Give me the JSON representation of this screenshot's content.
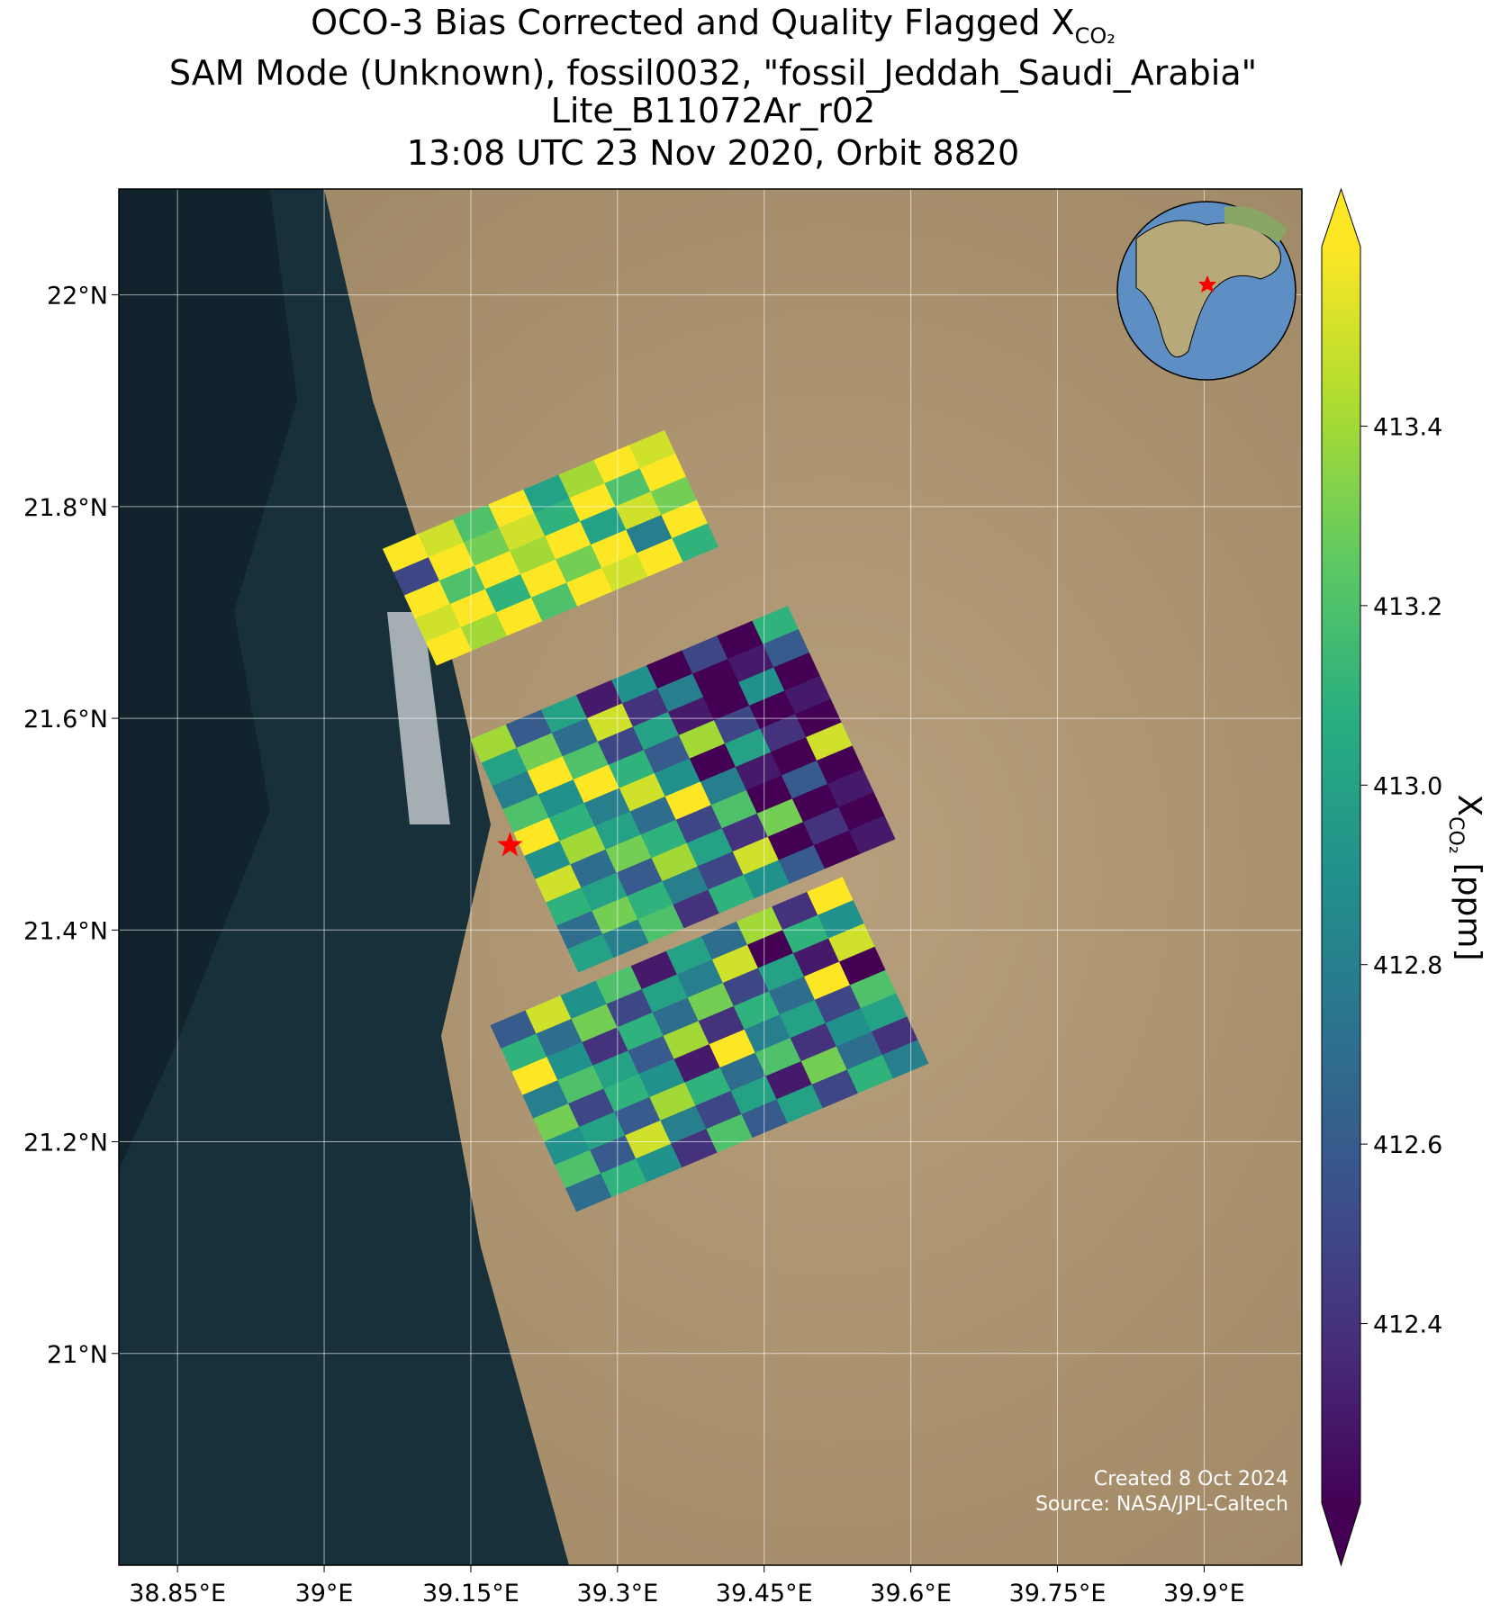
{
  "chart_data": {
    "type": "map",
    "title": [
      "OCO-3 Bias Corrected and Quality Flagged X",
      "SAM Mode (Unknown), fossil0032, \"fossil_Jeddah_Saudi_Arabia\"",
      "Lite_B11072Ar_r02",
      "13:08 UTC 23 Nov 2020, Orbit 8820"
    ],
    "title_subscript": "CO₂",
    "xlim": [
      38.79,
      40.0
    ],
    "ylim": [
      20.8,
      22.1
    ],
    "xticks": [
      {
        "value": 38.85,
        "label": "38.85°E"
      },
      {
        "value": 39.0,
        "label": "39°E"
      },
      {
        "value": 39.15,
        "label": "39.15°E"
      },
      {
        "value": 39.3,
        "label": "39.3°E"
      },
      {
        "value": 39.45,
        "label": "39.45°E"
      },
      {
        "value": 39.6,
        "label": "39.6°E"
      },
      {
        "value": 39.75,
        "label": "39.75°E"
      },
      {
        "value": 39.9,
        "label": "39.9°E"
      }
    ],
    "yticks": [
      {
        "value": 21.0,
        "label": "21°N"
      },
      {
        "value": 21.2,
        "label": "21.2°N"
      },
      {
        "value": 21.4,
        "label": "21.4°N"
      },
      {
        "value": 21.6,
        "label": "21.6°N"
      },
      {
        "value": 21.8,
        "label": "21.8°N"
      },
      {
        "value": 22.0,
        "label": "22°N"
      }
    ],
    "grid": true,
    "colormap": "viridis",
    "clim": [
      412.2,
      413.6
    ],
    "cticks": [
      412.4,
      412.6,
      412.8,
      {
        "value": 413.0,
        "label": "413.0"
      },
      413.2,
      413.4
    ],
    "colorbar_label": [
      "X",
      "CO₂",
      "[ppm]"
    ],
    "target": {
      "lon": 39.19,
      "lat": 21.48,
      "color": "#ff0000"
    },
    "swaths": [
      {
        "lon": 39.06,
        "lat": 21.76,
        "values": [
          [
            413.6,
            413.5,
            413.2,
            413.6,
            413.0,
            413.4,
            413.6,
            413.5
          ],
          [
            412.5,
            413.6,
            413.3,
            413.5,
            413.1,
            413.6,
            413.2,
            413.6
          ],
          [
            413.6,
            413.2,
            413.6,
            413.4,
            413.6,
            413.0,
            413.5,
            413.3
          ],
          [
            413.5,
            413.6,
            413.1,
            413.6,
            413.3,
            413.6,
            412.8,
            413.6
          ],
          [
            413.6,
            413.4,
            413.6,
            413.2,
            413.6,
            413.5,
            413.6,
            413.1
          ]
        ]
      },
      {
        "lon": 39.15,
        "lat": 21.58,
        "values": [
          [
            413.4,
            412.6,
            413.0,
            412.3,
            412.9,
            412.2,
            412.5,
            412.2,
            413.1
          ],
          [
            413.0,
            413.3,
            412.7,
            413.5,
            412.4,
            412.8,
            412.2,
            412.3,
            412.6
          ],
          [
            412.8,
            413.6,
            413.2,
            412.5,
            413.0,
            412.3,
            412.2,
            412.9,
            412.2
          ],
          [
            413.2,
            412.9,
            413.6,
            413.1,
            412.6,
            413.4,
            412.5,
            412.2,
            412.3
          ],
          [
            413.6,
            413.1,
            412.8,
            413.5,
            412.9,
            412.2,
            413.0,
            412.4,
            412.2
          ],
          [
            412.9,
            413.4,
            413.0,
            412.7,
            413.6,
            412.8,
            412.3,
            412.2,
            413.5
          ],
          [
            413.5,
            412.7,
            413.3,
            413.1,
            412.5,
            413.2,
            412.2,
            412.6,
            412.2
          ],
          [
            413.1,
            413.0,
            412.6,
            413.4,
            413.0,
            412.4,
            413.3,
            412.2,
            412.3
          ],
          [
            412.7,
            413.3,
            413.1,
            412.8,
            412.5,
            413.5,
            412.2,
            412.4,
            412.2
          ],
          [
            413.0,
            412.8,
            413.2,
            412.4,
            413.1,
            412.9,
            412.6,
            412.2,
            412.3
          ]
        ]
      },
      {
        "lon": 39.17,
        "lat": 21.31,
        "values": [
          [
            412.6,
            413.5,
            412.9,
            413.2,
            412.3,
            413.0,
            412.7,
            413.4,
            412.4,
            413.6
          ],
          [
            413.1,
            412.7,
            413.3,
            412.5,
            413.0,
            412.8,
            413.5,
            412.2,
            413.1,
            412.9
          ],
          [
            413.6,
            412.9,
            412.4,
            413.1,
            412.7,
            413.3,
            412.5,
            413.0,
            412.3,
            413.5
          ],
          [
            412.8,
            413.2,
            413.0,
            412.6,
            413.4,
            412.4,
            413.1,
            412.7,
            413.6,
            412.2
          ],
          [
            413.3,
            412.5,
            413.1,
            412.9,
            412.3,
            413.6,
            412.8,
            413.0,
            412.5,
            413.2
          ],
          [
            412.9,
            413.0,
            412.6,
            413.4,
            413.1,
            412.7,
            413.2,
            412.4,
            412.9,
            413.0
          ],
          [
            413.2,
            412.6,
            413.5,
            412.8,
            412.5,
            413.0,
            412.3,
            413.3,
            412.7,
            412.4
          ],
          [
            412.7,
            413.1,
            412.9,
            412.4,
            413.2,
            412.6,
            413.0,
            412.5,
            413.1,
            412.8
          ]
        ]
      }
    ],
    "footer": [
      "Created 8 Oct 2024",
      "Source: NASA/JPL-Caltech"
    ]
  }
}
